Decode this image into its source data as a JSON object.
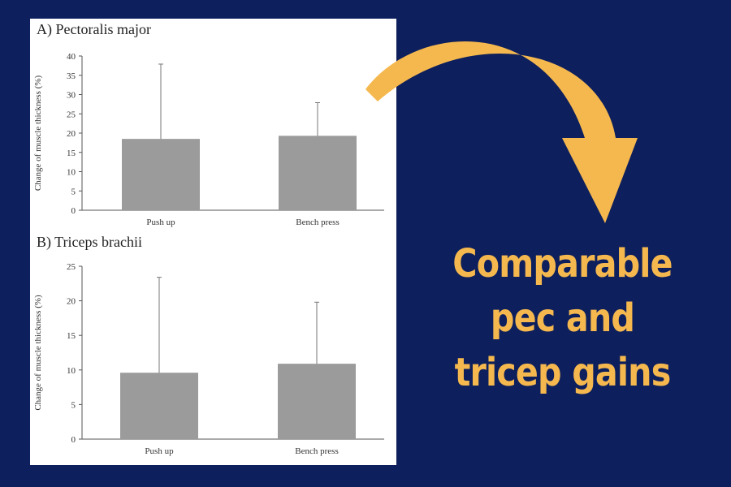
{
  "colors": {
    "background": "#0d1f5c",
    "panel": "#ffffff",
    "bar": "#9b9b9b",
    "accent": "#f5b84f"
  },
  "headline": {
    "line1": "Comparable",
    "line2": "pec and",
    "line3": "tricep gains"
  },
  "arrow_icon": "curved-arrow-down-right",
  "chart_data": [
    {
      "type": "bar",
      "title": "A) Pectoralis major",
      "ylabel": "Change of muscle thickness (%)",
      "xlabel": "",
      "categories": [
        "Push up",
        "Bench press"
      ],
      "values": [
        18.5,
        19.3
      ],
      "error_upper": [
        37.9,
        27.9
      ],
      "ylim": [
        0,
        40
      ],
      "yticks": [
        0,
        5,
        10,
        15,
        20,
        25,
        30,
        35,
        40
      ],
      "grid": false
    },
    {
      "type": "bar",
      "title": "B) Triceps brachii",
      "ylabel": "Change of muscle thickness (%)",
      "xlabel": "",
      "categories": [
        "Push up",
        "Bench press"
      ],
      "values": [
        9.6,
        10.9
      ],
      "error_upper": [
        23.4,
        19.8
      ],
      "ylim": [
        0,
        25
      ],
      "yticks": [
        0,
        5,
        10,
        15,
        20,
        25
      ],
      "grid": false
    }
  ]
}
